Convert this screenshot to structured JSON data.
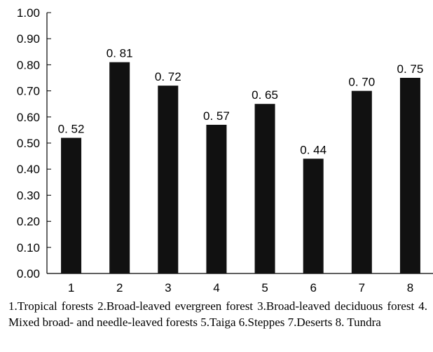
{
  "chart_data": {
    "type": "bar",
    "categories": [
      "1",
      "2",
      "3",
      "4",
      "5",
      "6",
      "7",
      "8"
    ],
    "values": [
      0.52,
      0.81,
      0.72,
      0.57,
      0.65,
      0.44,
      0.7,
      0.75
    ],
    "value_labels": [
      "0. 52",
      "0. 81",
      "0. 72",
      "0. 57",
      "0. 65",
      "0. 44",
      "0. 70",
      "0. 75"
    ],
    "yticks": [
      "0.00",
      "0.10",
      "0.20",
      "0.30",
      "0.40",
      "0.50",
      "0.60",
      "0.70",
      "0.80",
      "0.90",
      "1.00"
    ],
    "ylim": [
      0,
      1
    ],
    "title": "",
    "xlabel": "",
    "ylabel": "",
    "bar_color": "#111111",
    "grid": false,
    "legend": "none"
  },
  "caption": "1.Tropical forests 2.Broad-leaved evergreen forest 3.Broad-leaved deciduous forest 4. Mixed broad- and needle-leaved forests 5.Taiga 6.Steppes 7.Deserts 8. Tundra"
}
